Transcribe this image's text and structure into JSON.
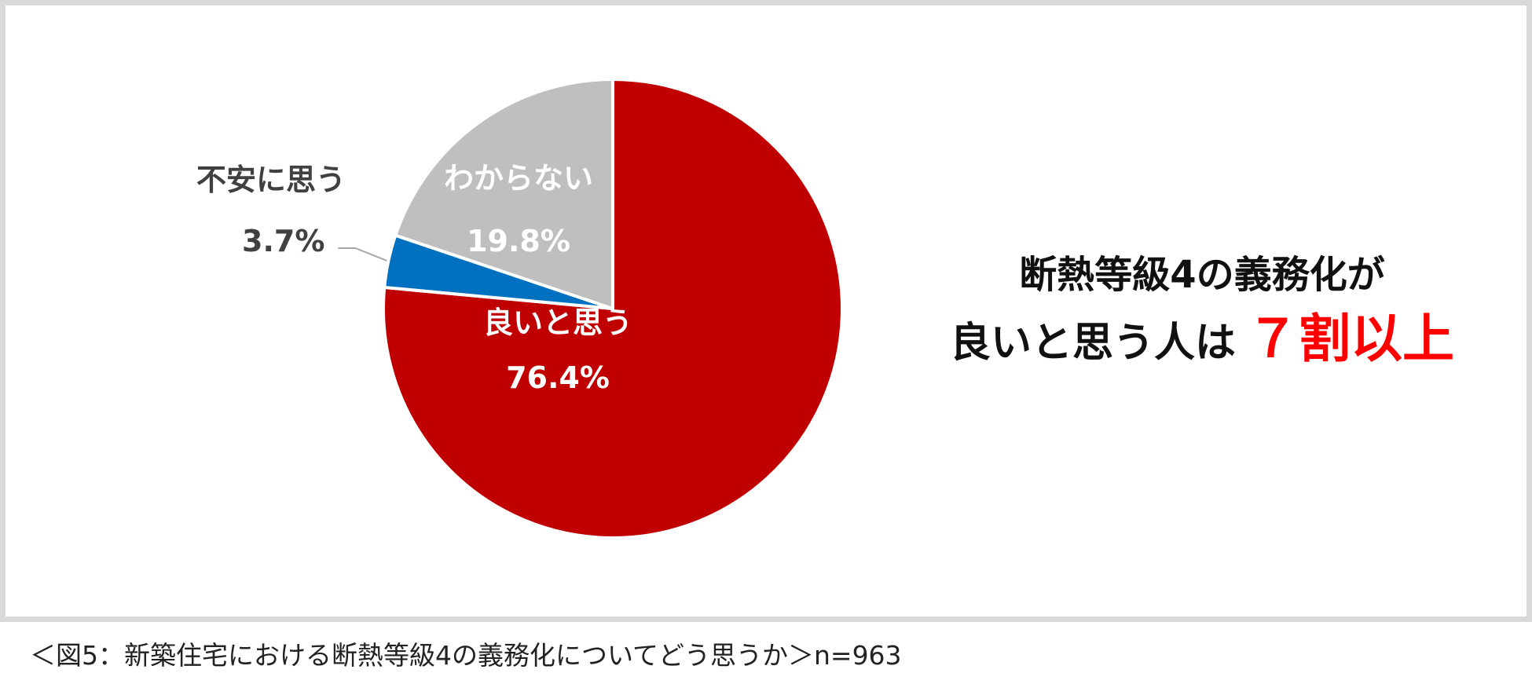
{
  "chart_data": {
    "type": "pie",
    "start_angle_deg": 0,
    "direction": "clockwise",
    "slices": [
      {
        "label": "良いと思う",
        "value": 76.4,
        "display": "76.4%",
        "color": "#c00000"
      },
      {
        "label": "不安に思う",
        "value": 3.7,
        "display": "3.7%",
        "color": "#0070c0"
      },
      {
        "label": "わからない",
        "value": 19.8,
        "display": "19.8%",
        "color": "#bfbfbf"
      }
    ]
  },
  "headline": {
    "line1": "断熱等級4の義務化が",
    "line2_prefix": "良いと思う人は",
    "line2_highlight": "７割以上"
  },
  "caption": "＜図5：新築住宅における断熱等級4の義務化についてどう思うか＞n=963",
  "colors": {
    "frame": "#d9d9d9",
    "highlight": "#ff0000"
  }
}
